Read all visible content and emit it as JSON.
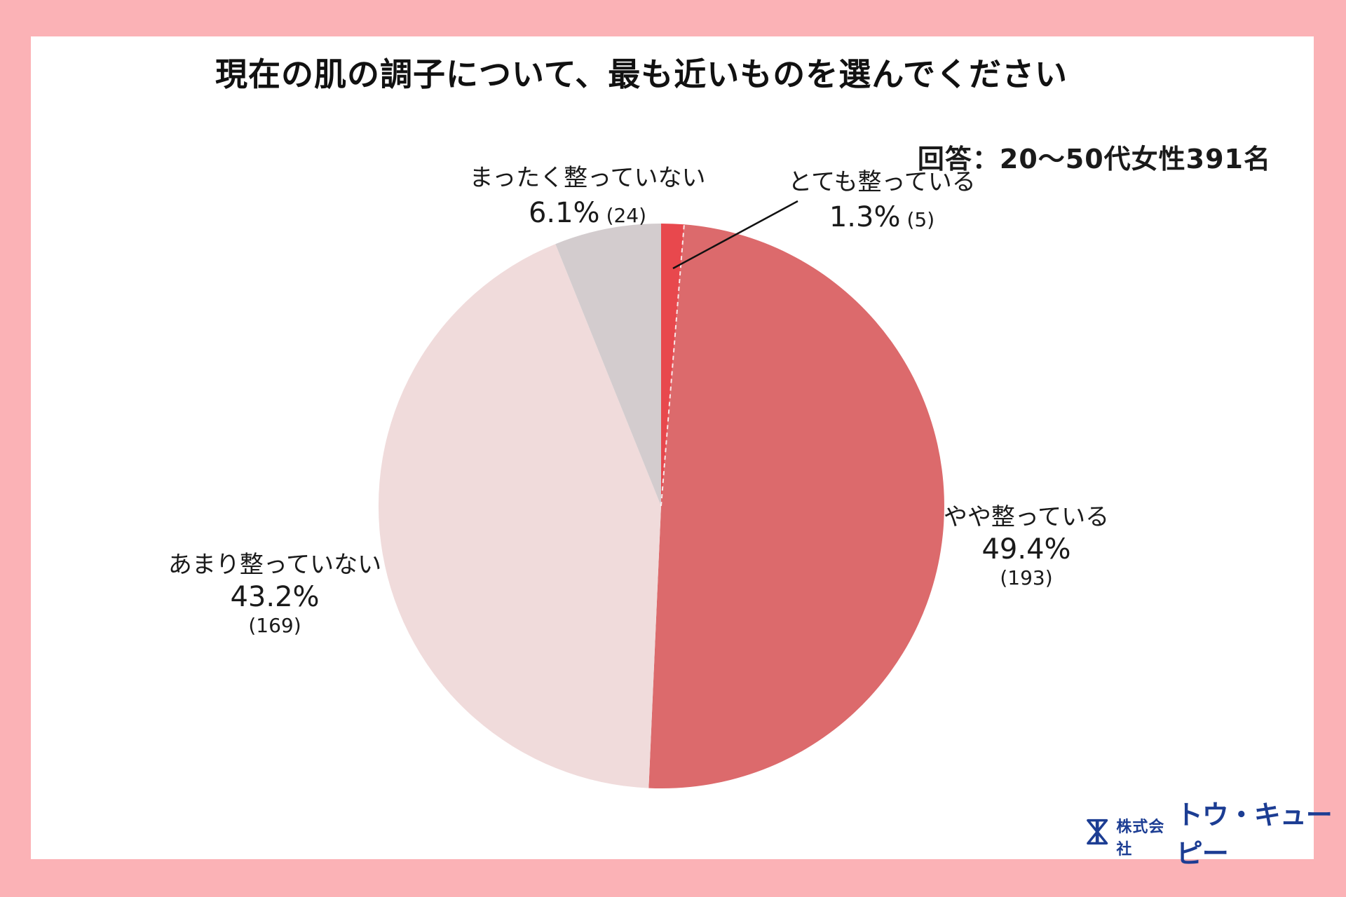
{
  "title": "現在の肌の調子について、最も近いものを選んでください",
  "respondents_note": "回答：20〜50代女性391名",
  "colors": {
    "frame_pink": "#FBB2B6",
    "card_white": "#FFFFFF",
    "text_dark": "#1A1A1A",
    "logo_blue": "#1C3D93"
  },
  "chart_data": {
    "type": "pie",
    "title": "現在の肌の調子について、最も近いものを選んでください",
    "sample_note": "回答：20〜50代女性391名",
    "total_count": 391,
    "direction": "clockwise",
    "start_angle": "12-oclock",
    "legend_position": "labels-around-pie",
    "slices": [
      {
        "label": "とても整っている",
        "percent": 1.3,
        "count": 5,
        "percent_text": "1.3%",
        "count_text": "(5)",
        "color": "#E8484D"
      },
      {
        "label": "やや整っている",
        "percent": 49.4,
        "count": 193,
        "percent_text": "49.4%",
        "count_text": "(193)",
        "color": "#DC6A6C"
      },
      {
        "label": "あまり整っていない",
        "percent": 43.2,
        "count": 169,
        "percent_text": "43.2%",
        "count_text": "(169)",
        "color": "#F0DBDB"
      },
      {
        "label": "まったく整っていない",
        "percent": 6.1,
        "count": 24,
        "percent_text": "6.1%",
        "count_text": "(24)",
        "color": "#D3CCCE"
      }
    ]
  },
  "logo": {
    "prefix": "株式会社",
    "name": "トウ・キューピー"
  }
}
